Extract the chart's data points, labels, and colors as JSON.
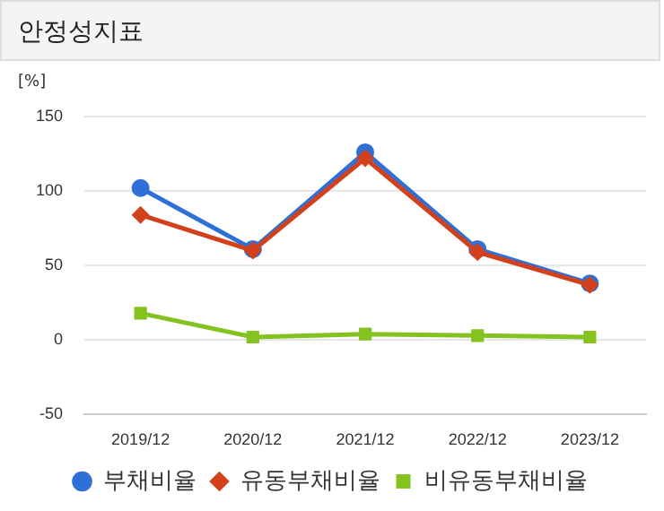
{
  "chart_data": {
    "type": "line",
    "title": "안정성지표",
    "ylabel": "[%]",
    "categories": [
      "2019/12",
      "2020/12",
      "2021/12",
      "2022/12",
      "2023/12"
    ],
    "series": [
      {
        "name": "부채비율",
        "color": "#2f6fd8",
        "marker": "circle",
        "values": [
          102,
          61,
          126,
          61,
          38
        ]
      },
      {
        "name": "유동부채비율",
        "color": "#d2411c",
        "marker": "diamond",
        "values": [
          84,
          60,
          122,
          59,
          37
        ]
      },
      {
        "name": "비유동부채비율",
        "color": "#84c21f",
        "marker": "square",
        "values": [
          18,
          2,
          4,
          3,
          2
        ]
      }
    ],
    "ylim": [
      -50,
      150
    ],
    "yticks": [
      -50,
      0,
      50,
      100,
      150
    ],
    "grid": "y",
    "legend": "bottom"
  }
}
